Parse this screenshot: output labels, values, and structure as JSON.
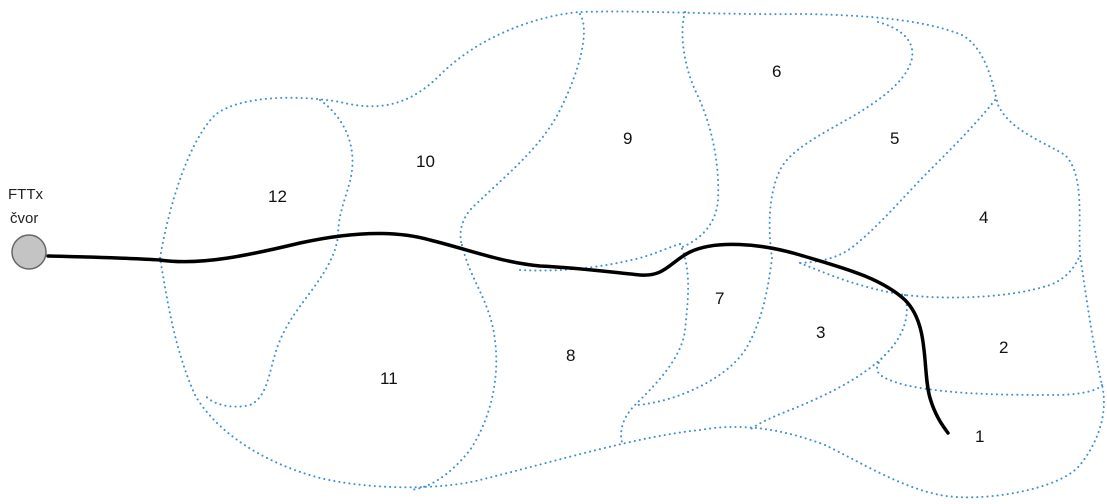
{
  "node": {
    "label_line1": "FTTx",
    "label_line2": "čvor"
  },
  "zones": [
    {
      "id": "zone-1",
      "label": "1"
    },
    {
      "id": "zone-2",
      "label": "2"
    },
    {
      "id": "zone-3",
      "label": "3"
    },
    {
      "id": "zone-4",
      "label": "4"
    },
    {
      "id": "zone-5",
      "label": "5"
    },
    {
      "id": "zone-6",
      "label": "6"
    },
    {
      "id": "zone-7",
      "label": "7"
    },
    {
      "id": "zone-8",
      "label": "8"
    },
    {
      "id": "zone-9",
      "label": "9"
    },
    {
      "id": "zone-10",
      "label": "10"
    },
    {
      "id": "zone-11",
      "label": "11"
    },
    {
      "id": "zone-12",
      "label": "12"
    }
  ],
  "colors": {
    "zone_boundary": "#3f8fd8",
    "cable": "#000000",
    "node_fill": "#c4c4c4"
  }
}
